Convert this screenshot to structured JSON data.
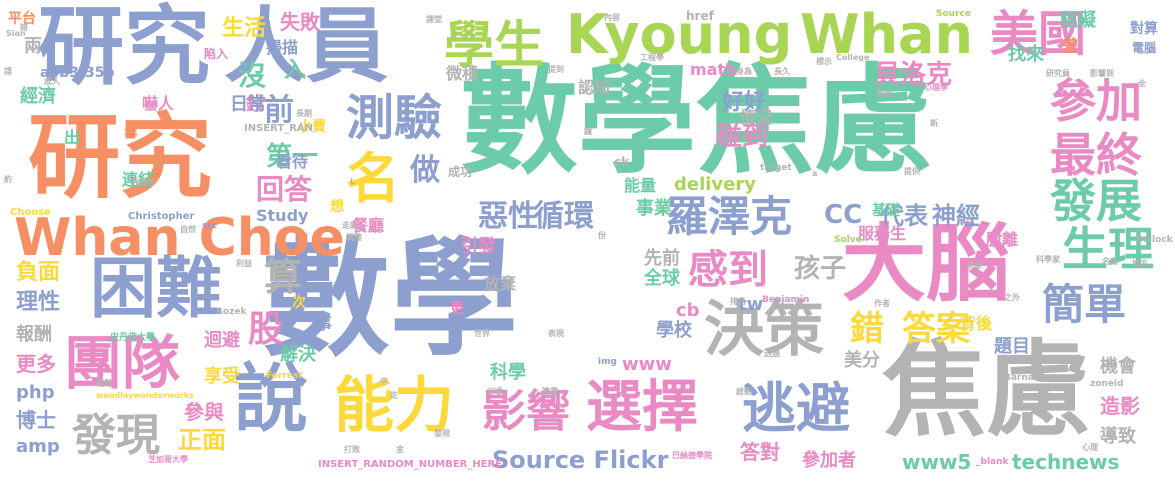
{
  "palette": {
    "blue": "#8c9fcf",
    "green": "#6ccba8",
    "orange": "#f78f65",
    "pink": "#e98ac4",
    "lime": "#a8d654",
    "yellow": "#fcd93a",
    "tan": "#e3c494",
    "gray": "#b3b3b3"
  },
  "words": [
    {
      "text": "數學",
      "color": "blue"
    },
    {
      "text": "數學焦慮",
      "color": "green"
    },
    {
      "text": "焦慮",
      "color": "gray"
    },
    {
      "text": "研究",
      "color": "orange"
    },
    {
      "text": "研究",
      "color": "blue"
    },
    {
      "text": "人員",
      "color": "blue"
    },
    {
      "text": "大腦",
      "color": "pink"
    },
    {
      "text": "Kyoung",
      "color": "lime"
    },
    {
      "text": "Whan",
      "color": "lime"
    },
    {
      "text": "學生",
      "color": "lime"
    },
    {
      "text": "美國",
      "color": "pink"
    },
    {
      "text": "Whan Choe",
      "color": "orange"
    },
    {
      "text": "困難",
      "color": "blue"
    },
    {
      "text": "說",
      "color": "blue"
    },
    {
      "text": "團隊",
      "color": "pink"
    },
    {
      "text": "能力",
      "color": "yellow"
    },
    {
      "text": "選擇",
      "color": "pink"
    },
    {
      "text": "逃避",
      "color": "blue"
    },
    {
      "text": "決策",
      "color": "gray"
    },
    {
      "text": "測驗",
      "color": "blue"
    },
    {
      "text": "名",
      "color": "yellow"
    },
    {
      "text": "影響",
      "color": "pink"
    },
    {
      "text": "發現",
      "color": "gray"
    },
    {
      "text": "參加",
      "color": "pink"
    },
    {
      "text": "最終",
      "color": "pink"
    },
    {
      "text": "發展",
      "color": "green"
    },
    {
      "text": "生理",
      "color": "green"
    },
    {
      "text": "簡單",
      "color": "blue"
    },
    {
      "text": "羅澤克",
      "color": "blue"
    },
    {
      "text": "感到",
      "color": "pink"
    },
    {
      "text": "Source Flickr",
      "color": "blue"
    },
    {
      "text": "循環",
      "color": "blue"
    },
    {
      "text": "惡性",
      "color": "blue"
    },
    {
      "text": "答案",
      "color": "yellow"
    },
    {
      "text": "錯",
      "color": "yellow"
    },
    {
      "text": "算",
      "color": "gray"
    },
    {
      "text": "股",
      "color": "pink"
    },
    {
      "text": "孩子",
      "color": "gray"
    },
    {
      "text": "CC",
      "color": "blue"
    },
    {
      "text": "代表",
      "color": "blue"
    },
    {
      "text": "神經",
      "color": "blue"
    },
    {
      "text": "生活",
      "color": "yellow"
    },
    {
      "text": "失敗",
      "color": "pink"
    },
    {
      "text": "沒",
      "color": "green"
    },
    {
      "text": "入",
      "color": "green"
    },
    {
      "text": "貝洛克",
      "color": "pink"
    },
    {
      "text": "好好",
      "color": "blue"
    },
    {
      "text": "碰到",
      "color": "pink"
    },
    {
      "text": "回答",
      "color": "pink"
    },
    {
      "text": "第一",
      "color": "green"
    },
    {
      "text": "前",
      "color": "blue"
    },
    {
      "text": "做",
      "color": "blue"
    },
    {
      "text": "正面",
      "color": "yellow"
    },
    {
      "text": "負面",
      "color": "yellow"
    },
    {
      "text": "理性",
      "color": "blue"
    },
    {
      "text": "報酬",
      "color": "gray"
    },
    {
      "text": "更多",
      "color": "pink"
    },
    {
      "text": "博士",
      "color": "blue"
    },
    {
      "text": "amp",
      "color": "blue"
    },
    {
      "text": "php",
      "color": "blue"
    },
    {
      "text": "參與",
      "color": "pink"
    },
    {
      "text": "享受",
      "color": "yellow"
    },
    {
      "text": "解決",
      "color": "green"
    },
    {
      "text": "科學",
      "color": "green"
    },
    {
      "text": "美分",
      "color": "gray"
    },
    {
      "text": "題目",
      "color": "blue"
    },
    {
      "text": "機會",
      "color": "gray"
    },
    {
      "text": "造影",
      "color": "pink"
    },
    {
      "text": "導致",
      "color": "gray"
    },
    {
      "text": "www5",
      "color": "green"
    },
    {
      "text": "technews",
      "color": "green"
    },
    {
      "text": "答對",
      "color": "pink"
    },
    {
      "text": "參加者",
      "color": "pink"
    },
    {
      "text": "delivery",
      "color": "lime"
    },
    {
      "text": "事業",
      "color": "green"
    },
    {
      "text": "學校",
      "color": "blue"
    },
    {
      "text": "全球",
      "color": "green"
    },
    {
      "text": "www",
      "color": "pink"
    },
    {
      "text": "迴避",
      "color": "pink"
    },
    {
      "text": "引發",
      "color": "pink"
    },
    {
      "text": "經濟",
      "color": "green"
    },
    {
      "text": "兩",
      "color": "gray"
    },
    {
      "text": "嚇人",
      "color": "pink"
    },
    {
      "text": "錢",
      "color": "pink"
    },
    {
      "text": "日常",
      "color": "blue"
    },
    {
      "text": "看待",
      "color": "blue"
    },
    {
      "text": "連結",
      "color": "green"
    },
    {
      "text": "出",
      "color": "green"
    },
    {
      "text": "年",
      "color": "orange"
    },
    {
      "text": "掃描",
      "color": "blue"
    },
    {
      "text": "微積",
      "color": "gray"
    },
    {
      "text": "認知",
      "color": "gray"
    },
    {
      "text": "情況",
      "color": "gray"
    },
    {
      "text": "能量",
      "color": "green"
    },
    {
      "text": "math",
      "color": "pink"
    },
    {
      "text": "cb",
      "color": "pink"
    },
    {
      "text": "tw",
      "color": "blue"
    },
    {
      "text": "先前",
      "color": "gray"
    },
    {
      "text": "放棄",
      "color": "gray"
    },
    {
      "text": "找來",
      "color": "green"
    },
    {
      "text": "阻礙",
      "color": "green"
    },
    {
      "text": "差",
      "color": "orange"
    },
    {
      "text": "基礎",
      "color": "green"
    },
    {
      "text": "脫離",
      "color": "pink"
    },
    {
      "text": "服務生",
      "color": "pink"
    },
    {
      "text": "餐廳",
      "color": "pink"
    },
    {
      "text": "背後",
      "color": "yellow"
    },
    {
      "text": "事",
      "color": "blue"
    },
    {
      "text": "小費",
      "color": "yellow"
    },
    {
      "text": "a4b3f35b",
      "color": "blue"
    },
    {
      "text": "Study",
      "color": "blue"
    },
    {
      "text": "想",
      "color": "yellow"
    },
    {
      "text": "次",
      "color": "yellow"
    },
    {
      "text": "更",
      "color": "pink"
    },
    {
      "text": "對算",
      "color": "blue"
    },
    {
      "text": "電腦",
      "color": "blue"
    },
    {
      "text": "平台",
      "color": "orange"
    },
    {
      "text": "陷入",
      "color": "pink"
    },
    {
      "text": "成功",
      "color": "gray"
    },
    {
      "text": "ck",
      "color": "gray"
    },
    {
      "text": "href",
      "color": "gray"
    },
    {
      "text": "Task",
      "color": "gray"
    },
    {
      "text": "Choose",
      "color": "yellow"
    },
    {
      "text": "Christopher",
      "color": "blue"
    },
    {
      "text": "INSERT_RAN",
      "color": "gray"
    },
    {
      "text": "INSERT_RANDOM_NUMBER_HERE",
      "color": "pink"
    },
    {
      "text": "Benjamin",
      "color": "pink"
    },
    {
      "text": "Rozek",
      "color": "gray"
    },
    {
      "text": "Forrest",
      "color": "yellow"
    },
    {
      "text": "CAST",
      "color": "gray"
    },
    {
      "text": "Barnard",
      "color": "gray"
    },
    {
      "text": "zoneid",
      "color": "gray"
    },
    {
      "text": "Beilock",
      "color": "gray"
    },
    {
      "text": "_blank",
      "color": "pink"
    },
    {
      "text": "target",
      "color": "gray"
    },
    {
      "text": "Solve",
      "color": "lime"
    },
    {
      "text": "Source",
      "color": "lime"
    },
    {
      "text": "img",
      "color": "blue"
    },
    {
      "text": "College",
      "color": "gray"
    },
    {
      "text": "src",
      "color": "blue"
    },
    {
      "text": "工程學",
      "color": "gray"
    },
    {
      "text": "史丹佛大學",
      "color": "green"
    },
    {
      "text": "芝加哥大學",
      "color": "pink"
    },
    {
      "text": "woodlaywonderworks",
      "color": "yellow"
    },
    {
      "text": "巴納德學院",
      "color": "pink"
    },
    {
      "text": "世界",
      "color": "gray"
    },
    {
      "text": "表現",
      "color": "gray"
    },
    {
      "text": "課堂",
      "color": "gray"
    },
    {
      "text": "內容",
      "color": "gray"
    },
    {
      "text": "心理學",
      "color": "pink"
    },
    {
      "text": "研究員",
      "color": "gray"
    },
    {
      "text": "影響到",
      "color": "gray"
    },
    {
      "text": "成人",
      "color": "gray"
    },
    {
      "text": "請",
      "color": "gray"
    },
    {
      "text": "Sian",
      "color": "gray"
    },
    {
      "text": "約",
      "color": "gray"
    },
    {
      "text": "長期",
      "color": "gray"
    },
    {
      "text": "身為",
      "color": "gray"
    },
    {
      "text": "長久",
      "color": "gray"
    },
    {
      "text": "實驗",
      "color": "gray"
    },
    {
      "text": "提供",
      "color": "gray"
    },
    {
      "text": "名為",
      "color": "gray"
    },
    {
      "text": "地方",
      "color": "gray"
    },
    {
      "text": "之外",
      "color": "gray"
    },
    {
      "text": "作者",
      "color": "gray"
    },
    {
      "text": "打敗",
      "color": "gray"
    },
    {
      "text": "發現",
      "color": "gray"
    },
    {
      "text": "印象",
      "color": "gray"
    },
    {
      "text": "簽書",
      "color": "gray"
    },
    {
      "text": "輕鬆",
      "color": "gray"
    },
    {
      "text": "走路",
      "color": "gray"
    },
    {
      "text": "調整",
      "color": "gray"
    },
    {
      "text": "自然",
      "color": "gray"
    },
    {
      "text": "利益",
      "color": "gray"
    },
    {
      "text": "份",
      "color": "gray"
    },
    {
      "text": "新",
      "color": "gray"
    },
    {
      "text": "提到",
      "color": "gray"
    },
    {
      "text": "標示",
      "color": "gray"
    },
    {
      "text": "全",
      "color": "gray"
    },
    {
      "text": "心理",
      "color": "gray"
    },
    {
      "text": "科學家",
      "color": "gray"
    },
    {
      "text": "現象",
      "color": "gray"
    },
    {
      "text": "啟動",
      "color": "gray"
    },
    {
      "text": "透過",
      "color": "gray"
    },
    {
      "text": "排名",
      "color": "gray"
    },
    {
      "text": "a",
      "color": "gray"
    },
    {
      "text": "L",
      "color": "gray"
    },
    {
      "text": "金",
      "color": "gray"
    },
    {
      "text": "中",
      "color": "gray"
    },
    {
      "text": "走",
      "color": "gray"
    },
    {
      "text": "鐘",
      "color": "gray"
    },
    {
      "text": "錯",
      "color": "gray"
    },
    {
      "text": "Sian",
      "color": "gray"
    }
  ]
}
